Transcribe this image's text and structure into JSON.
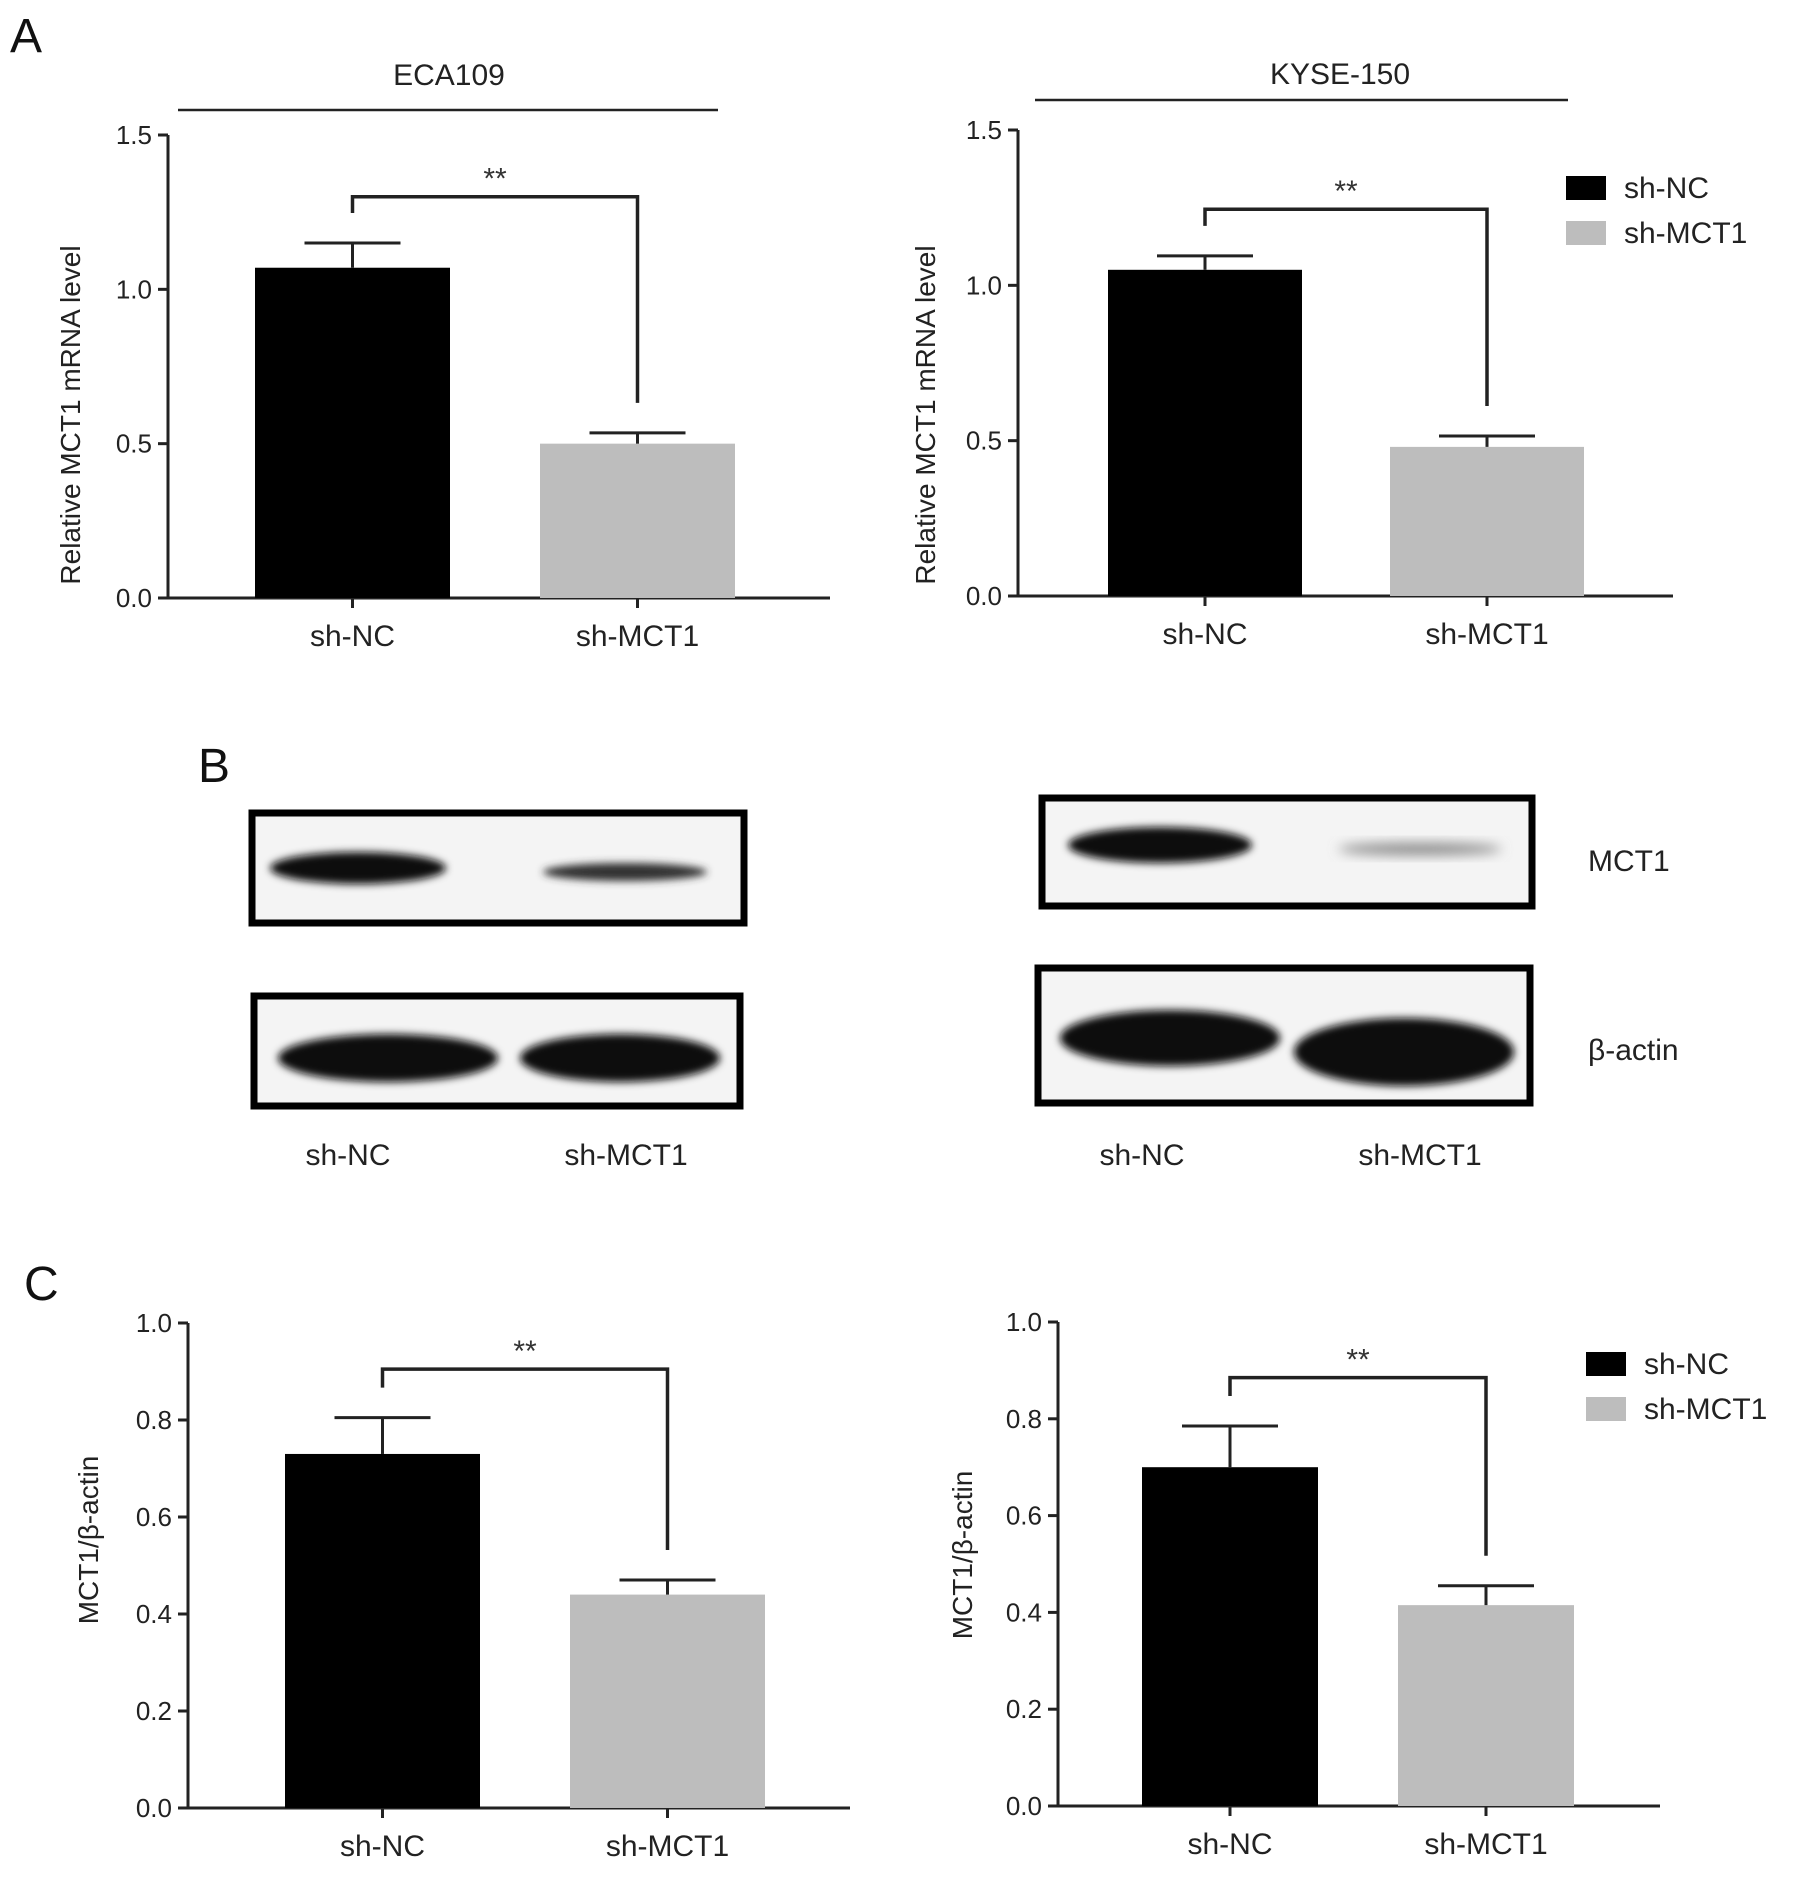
{
  "panels": {
    "A": "A",
    "B": "B",
    "C": "C"
  },
  "colors": {
    "sh_NC": "#000000",
    "sh_MCT1": "#bdbdbd"
  },
  "chart_data": [
    {
      "id": "A-left",
      "type": "bar",
      "group_title": "ECA109",
      "ylabel": "Relative MCT1 mRNA level",
      "categories": [
        "sh-NC",
        "sh-MCT1"
      ],
      "values": [
        1.07,
        0.5
      ],
      "errors": [
        0.08,
        0.035
      ],
      "ylim": [
        0,
        1.5
      ],
      "yticks": [
        "0.0",
        "0.5",
        "1.0",
        "1.5"
      ],
      "significance": "**",
      "legend": false
    },
    {
      "id": "A-right",
      "type": "bar",
      "group_title": "KYSE-150",
      "ylabel": "Relative MCT1 mRNA level",
      "categories": [
        "sh-NC",
        "sh-MCT1"
      ],
      "values": [
        1.05,
        0.48
      ],
      "errors": [
        0.045,
        0.035
      ],
      "ylim": [
        0,
        1.5
      ],
      "yticks": [
        "0.0",
        "0.5",
        "1.0",
        "1.5"
      ],
      "significance": "**",
      "legend": true,
      "legend_placement": "right",
      "legend_entries": [
        "sh-NC",
        "sh-MCT1"
      ]
    },
    {
      "id": "C-left",
      "type": "bar",
      "ylabel": "MCT1/β-actin",
      "categories": [
        "sh-NC",
        "sh-MCT1"
      ],
      "values": [
        0.73,
        0.44
      ],
      "errors": [
        0.075,
        0.03
      ],
      "ylim": [
        0,
        1.0
      ],
      "yticks": [
        "0.0",
        "0.2",
        "0.4",
        "0.6",
        "0.8",
        "1.0"
      ],
      "significance": "**",
      "legend": false
    },
    {
      "id": "C-right",
      "type": "bar",
      "ylabel": "MCT1/β-actin",
      "categories": [
        "sh-NC",
        "sh-MCT1"
      ],
      "values": [
        0.7,
        0.415
      ],
      "errors": [
        0.085,
        0.04
      ],
      "ylim": [
        0,
        1.0
      ],
      "yticks": [
        "0.0",
        "0.2",
        "0.4",
        "0.6",
        "0.8",
        "1.0"
      ],
      "significance": "**",
      "legend": true,
      "legend_placement": "right",
      "legend_entries": [
        "sh-NC",
        "sh-MCT1"
      ]
    }
  ],
  "blots": {
    "row_labels": [
      "MCT1",
      "β-actin"
    ],
    "lane_labels": [
      "sh-NC",
      "sh-MCT1"
    ]
  }
}
